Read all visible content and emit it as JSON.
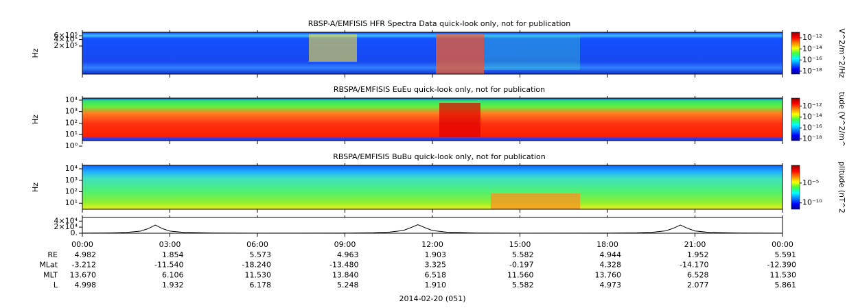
{
  "chart_data": [
    {
      "type": "spectrogram",
      "title": "RBSP-A/EMFISIS  HFR Spectra Data quick-look only, not for publication",
      "ylabel": "Hz",
      "ylog": true,
      "ylim": [
        10000,
        870000
      ],
      "yticks": [
        {
          "value": 200000,
          "label": "2×10⁵"
        },
        {
          "value": 400000,
          "label": "4×10⁵"
        },
        {
          "value": 600000,
          "label": "6×10⁵"
        }
      ],
      "colorbar": {
        "label": "V^2/m^2/Hz",
        "log": true,
        "clim": [
          3e-19,
          1e-11
        ],
        "ticks": [
          {
            "value": 1e-12,
            "label": "10⁻¹²"
          },
          {
            "value": 1e-14,
            "label": "10⁻¹⁴"
          },
          {
            "value": 1e-16,
            "label": "10⁻¹⁶"
          },
          {
            "value": 1e-18,
            "label": "10⁻¹⁸"
          }
        ]
      }
    },
    {
      "type": "spectrogram",
      "title": "RBSPA/EMFISIS  EuEu quick-look only, not for publication",
      "ylabel": "Hz",
      "ylog": true,
      "ylim": [
        3,
        15000
      ],
      "yticks": [
        {
          "value": 1,
          "label": "10⁰"
        },
        {
          "value": 10,
          "label": "10¹"
        },
        {
          "value": 100,
          "label": "10²"
        },
        {
          "value": 1000,
          "label": "10³"
        },
        {
          "value": 10000,
          "label": "10⁴"
        }
      ],
      "colorbar": {
        "label": "tude (V^2/m^",
        "log": true,
        "clim": [
          5e-19,
          3e-11
        ],
        "ticks": [
          {
            "value": 1e-12,
            "label": "10⁻¹²"
          },
          {
            "value": 1e-14,
            "label": "10⁻¹⁴"
          },
          {
            "value": 1e-16,
            "label": "10⁻¹⁶"
          },
          {
            "value": 1e-18,
            "label": "10⁻¹⁸"
          }
        ]
      }
    },
    {
      "type": "spectrogram",
      "title": "RBSPA/EMFISIS  BuBu quick-look only, not for publication",
      "ylabel": "Hz",
      "ylog": true,
      "ylim": [
        3,
        20000
      ],
      "yticks": [
        {
          "value": 10,
          "label": "10¹"
        },
        {
          "value": 100,
          "label": "10²"
        },
        {
          "value": 1000,
          "label": "10³"
        },
        {
          "value": 10000,
          "label": "10⁴"
        }
      ],
      "colorbar": {
        "label": "plitude (nT^2",
        "log": true,
        "clim": [
          2.5e-12,
          0.3
        ],
        "ticks": [
          {
            "value": 1e-05,
            "label": "10⁻⁵"
          },
          {
            "value": 1e-10,
            "label": "10⁻¹⁰"
          }
        ]
      }
    },
    {
      "type": "line",
      "color": "#000000",
      "ylim": [
        0,
        52000
      ],
      "yticks": [
        {
          "value": 0,
          "label": "0."
        },
        {
          "value": 20000,
          "label": "2×10⁴"
        },
        {
          "value": 40000,
          "label": "4×10⁴"
        }
      ],
      "xlim": [
        0,
        24
      ],
      "xticks": [
        {
          "value": 0,
          "label": "00:00"
        },
        {
          "value": 3,
          "label": "03:00"
        },
        {
          "value": 6,
          "label": "06:00"
        },
        {
          "value": 9,
          "label": "09:00"
        },
        {
          "value": 12,
          "label": "12:00"
        },
        {
          "value": 15,
          "label": "15:00"
        },
        {
          "value": 18,
          "label": "18:00"
        },
        {
          "value": 21,
          "label": "21:00"
        },
        {
          "value": 24,
          "label": "00:00"
        }
      ],
      "x": [
        0,
        1,
        1.5,
        2,
        2.25,
        2.5,
        2.75,
        3,
        3.5,
        4.5,
        6,
        9,
        10,
        10.5,
        11,
        11.25,
        11.5,
        11.75,
        12,
        12.5,
        13.5,
        15,
        18,
        19,
        19.5,
        20,
        20.25,
        20.5,
        20.75,
        21,
        21.5,
        22.5,
        24
      ],
      "values": [
        400,
        1200,
        2500,
        7000,
        15000,
        27000,
        15000,
        7000,
        2500,
        800,
        300,
        500,
        1500,
        3500,
        9000,
        18000,
        28000,
        18000,
        9000,
        3500,
        900,
        300,
        400,
        1300,
        3000,
        8000,
        16000,
        27000,
        16000,
        7500,
        2600,
        800,
        300
      ]
    }
  ],
  "ephemeris": {
    "rows": [
      {
        "label": "RE",
        "values": [
          "4.982",
          "1.854",
          "5.573",
          "4.963",
          "1.903",
          "5.582",
          "4.944",
          "1.952",
          "5.591"
        ]
      },
      {
        "label": "MLat",
        "values": [
          "-3.212",
          "-11.540",
          "-18.240",
          "-13.480",
          "3.325",
          "-0.197",
          "4.328",
          "-14.170",
          "-12.390"
        ]
      },
      {
        "label": "MLT",
        "values": [
          "13.670",
          "6.106",
          "11.530",
          "13.840",
          "6.518",
          "11.560",
          "13.760",
          "6.528",
          "11.530"
        ]
      },
      {
        "label": "L",
        "values": [
          "4.998",
          "1.932",
          "6.178",
          "5.248",
          "1.910",
          "5.582",
          "4.973",
          "2.077",
          "5.861"
        ]
      }
    ],
    "date": "2014-02-20 (051)"
  }
}
